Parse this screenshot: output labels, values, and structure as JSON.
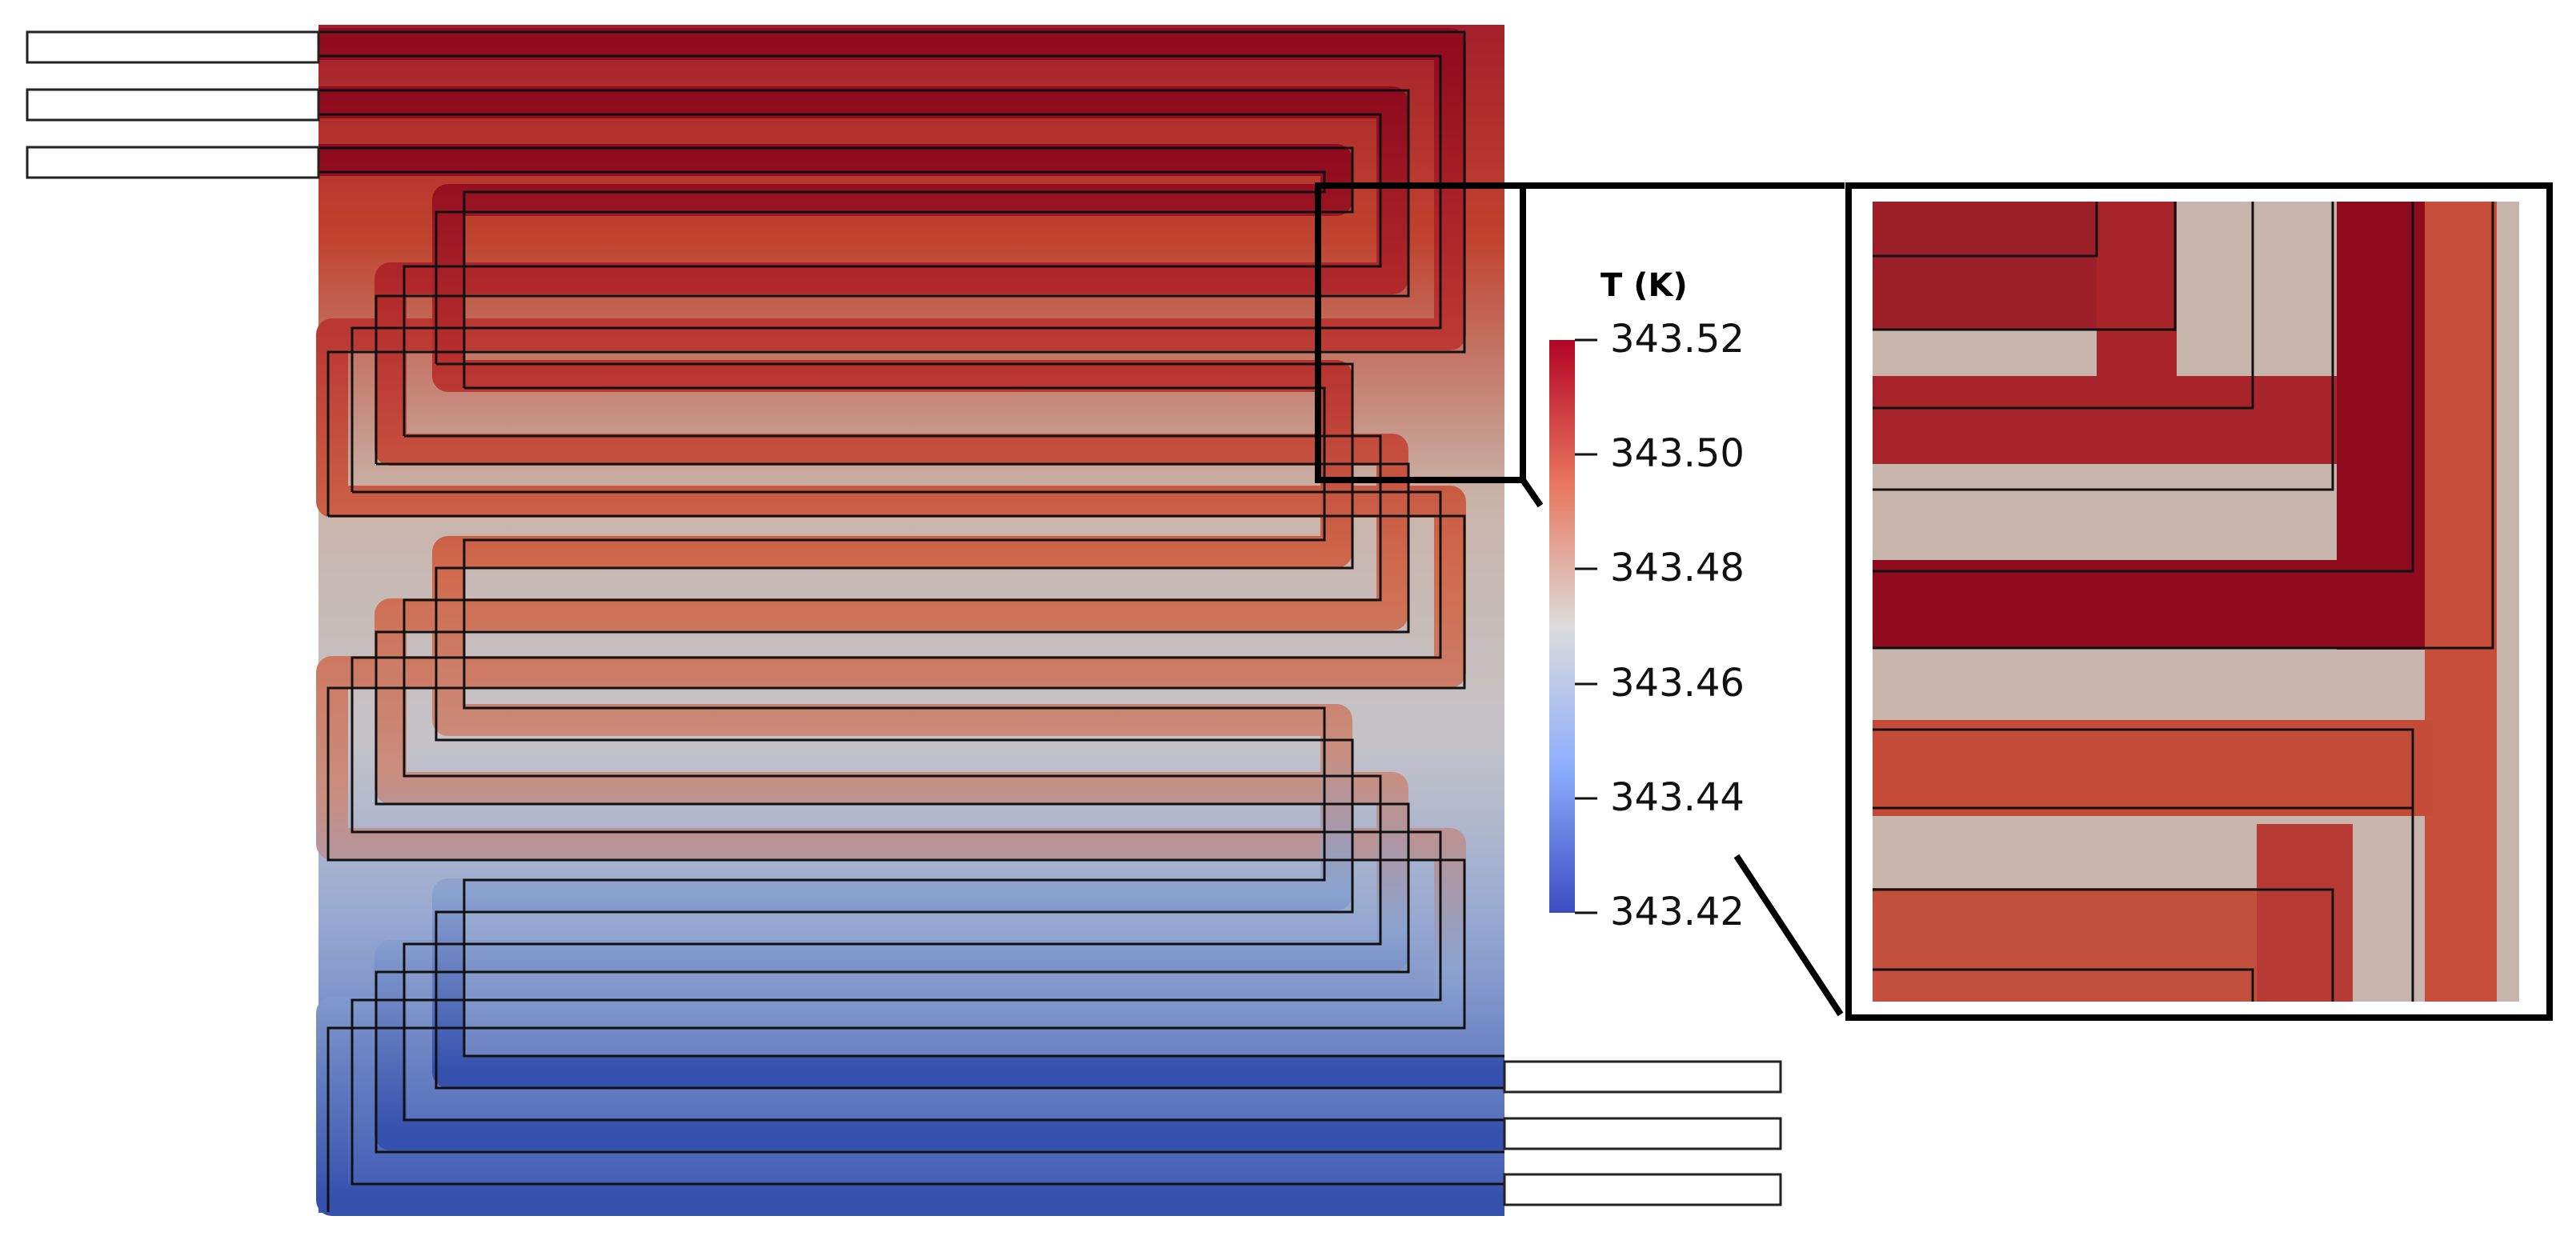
{
  "legend": {
    "title": "T (K)",
    "ticks": [
      "343.52",
      "343.50",
      "343.48",
      "343.46",
      "343.44",
      "343.42"
    ],
    "min": 343.42,
    "max": 343.52
  },
  "colors": {
    "hot": "#8f0b1e",
    "warm": "#c8462e",
    "mid": "#c7c1bd",
    "cool": "#99afd6",
    "cold": "#3a55b0",
    "channel_outline": "#111111",
    "frame": "#000000"
  }
}
